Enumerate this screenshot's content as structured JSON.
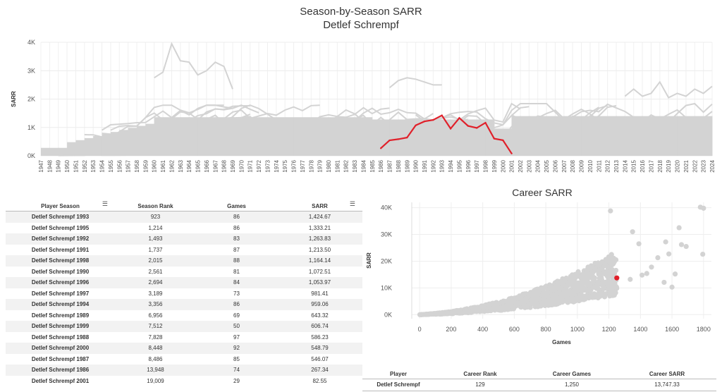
{
  "titles": {
    "main": "Season-by-Season SARR",
    "subtitle": "Detlef Schrempf",
    "career": "Career SARR"
  },
  "chart_data": [
    {
      "type": "line",
      "title": "Season-by-Season SARR",
      "subtitle": "Detlef Schrempf",
      "xlabel": "",
      "ylabel": "SARR",
      "xlim": [
        1947,
        2024
      ],
      "ylim": [
        0,
        4000
      ],
      "yticks": [
        "0K",
        "1K",
        "2K",
        "3K",
        "4K"
      ],
      "grid": true,
      "background_series_color": "#d3d3d3",
      "highlight_color": "#e0202a",
      "highlight": {
        "name": "Detlef Schrempf",
        "x": [
          1986,
          1987,
          1988,
          1989,
          1990,
          1991,
          1992,
          1993,
          1994,
          1995,
          1996,
          1997,
          1998,
          1999,
          2000,
          2001
        ],
        "values": [
          267.34,
          546.07,
          586.23,
          643.32,
          1072.51,
          1213.5,
          1263.83,
          1424.67,
          959.06,
          1333.21,
          1053.97,
          981.41,
          1164.14,
          606.74,
          548.79,
          82.55
        ]
      },
      "background_peaks": [
        {
          "x": [
            1960,
            1961,
            1962,
            1963,
            1964,
            1965,
            1966,
            1967,
            1968,
            1969
          ],
          "values": [
            2750,
            2950,
            3950,
            3350,
            3300,
            2850,
            3000,
            3300,
            3150,
            2350
          ]
        },
        {
          "x": [
            1987,
            1988,
            1989,
            1990,
            1991,
            1992,
            1993
          ],
          "values": [
            2400,
            2650,
            2750,
            2700,
            2600,
            2500,
            2500
          ]
        },
        {
          "x": [
            2014,
            2015,
            2016,
            2017,
            2018,
            2019,
            2020,
            2021,
            2022,
            2023,
            2024
          ],
          "values": [
            2100,
            2350,
            2100,
            2200,
            2600,
            2050,
            2200,
            2100,
            2350,
            2200,
            2450
          ]
        }
      ]
    },
    {
      "type": "scatter",
      "title": "Career SARR",
      "xlabel": "Games",
      "ylabel": "SARR",
      "xlim": [
        -50,
        1850
      ],
      "ylim": [
        -1500,
        42000
      ],
      "xticks": [
        "0",
        "200",
        "400",
        "600",
        "800",
        "1000",
        "1200",
        "1400",
        "1600",
        "1800"
      ],
      "yticks": [
        "0K",
        "10K",
        "20K",
        "30K",
        "40K"
      ],
      "grid": true,
      "background_color": "#d3d3d3",
      "highlight_color": "#e0202a",
      "highlight": {
        "name": "Detlef Schrempf",
        "x": 1250,
        "y": 13747.33
      },
      "outliers": [
        {
          "x": 1210,
          "y": 38800
        },
        {
          "x": 1780,
          "y": 40200
        },
        {
          "x": 1800,
          "y": 39800
        },
        {
          "x": 1350,
          "y": 31000
        },
        {
          "x": 1645,
          "y": 32500
        },
        {
          "x": 1390,
          "y": 26500
        },
        {
          "x": 1560,
          "y": 27200
        },
        {
          "x": 1580,
          "y": 22700
        },
        {
          "x": 1660,
          "y": 26200
        },
        {
          "x": 1690,
          "y": 25500
        },
        {
          "x": 1795,
          "y": 22600
        },
        {
          "x": 1510,
          "y": 21300
        },
        {
          "x": 1620,
          "y": 15200
        },
        {
          "x": 1440,
          "y": 15400
        },
        {
          "x": 1550,
          "y": 12100
        },
        {
          "x": 1410,
          "y": 14800
        },
        {
          "x": 1470,
          "y": 17800
        },
        {
          "x": 1335,
          "y": 13200
        },
        {
          "x": 1600,
          "y": 10300
        }
      ]
    }
  ],
  "season_table": {
    "headers": [
      "Player Season",
      "Season Rank",
      "Games",
      "SARR"
    ],
    "rows": [
      [
        "Detlef Schrempf 1993",
        "923",
        "86",
        "1,424.67"
      ],
      [
        "Detlef Schrempf 1995",
        "1,214",
        "86",
        "1,333.21"
      ],
      [
        "Detlef Schrempf 1992",
        "1,493",
        "83",
        "1,263.83"
      ],
      [
        "Detlef Schrempf 1991",
        "1,737",
        "87",
        "1,213.50"
      ],
      [
        "Detlef Schrempf 1998",
        "2,015",
        "88",
        "1,164.14"
      ],
      [
        "Detlef Schrempf 1990",
        "2,561",
        "81",
        "1,072.51"
      ],
      [
        "Detlef Schrempf 1996",
        "2,694",
        "84",
        "1,053.97"
      ],
      [
        "Detlef Schrempf 1997",
        "3,189",
        "73",
        "981.41"
      ],
      [
        "Detlef Schrempf 1994",
        "3,356",
        "86",
        "959.06"
      ],
      [
        "Detlef Schrempf 1989",
        "6,956",
        "69",
        "643.32"
      ],
      [
        "Detlef Schrempf 1999",
        "7,512",
        "50",
        "606.74"
      ],
      [
        "Detlef Schrempf 1988",
        "7,828",
        "97",
        "586.23"
      ],
      [
        "Detlef Schrempf 2000",
        "8,448",
        "92",
        "548.79"
      ],
      [
        "Detlef Schrempf 1987",
        "8,486",
        "85",
        "546.07"
      ],
      [
        "Detlef Schrempf 1986",
        "13,948",
        "74",
        "267.34"
      ],
      [
        "Detlef Schrempf 2001",
        "19,009",
        "29",
        "82.55"
      ]
    ]
  },
  "career_table": {
    "headers": [
      "Player",
      "Career Rank",
      "Career Games",
      "Career SARR"
    ],
    "row": [
      "Detlef Schrempf",
      "129",
      "1,250",
      "13,747.33"
    ]
  },
  "icons": {
    "sort": "sort-icon"
  }
}
